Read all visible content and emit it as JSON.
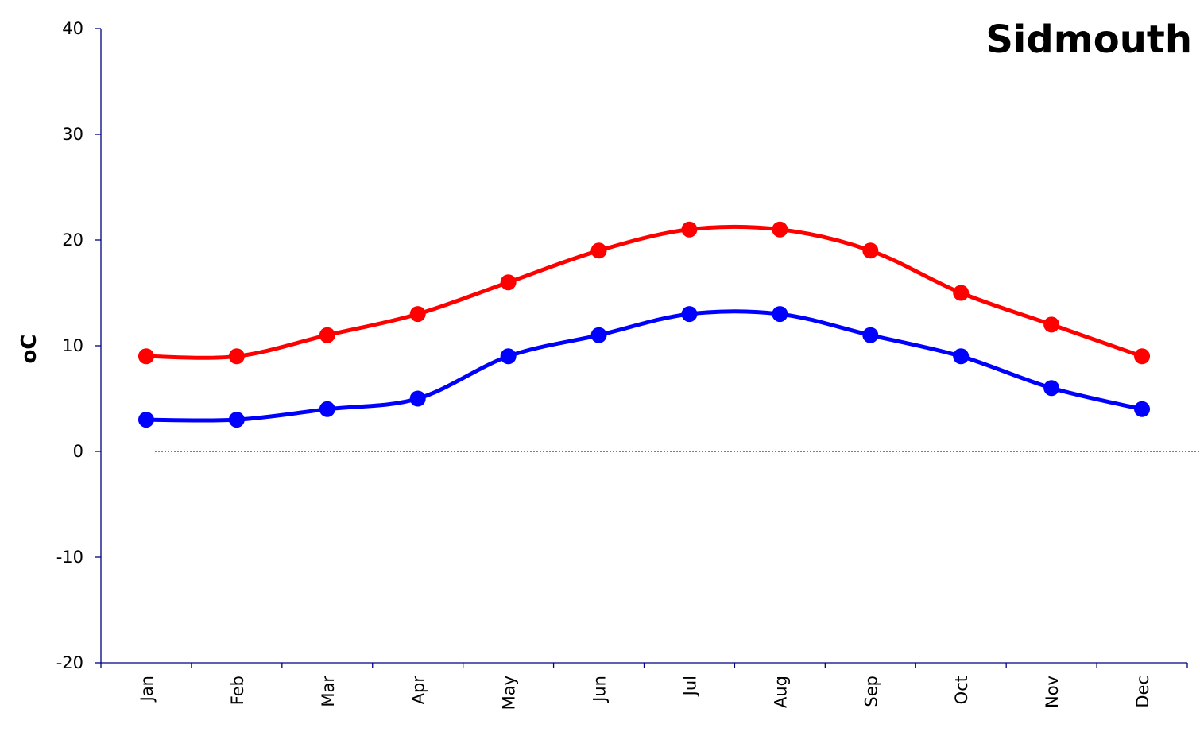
{
  "chart_data": {
    "type": "line",
    "title": "Sidmouth",
    "xlabel": "",
    "ylabel": "oC",
    "ylim": [
      -20,
      40
    ],
    "yticks": [
      40,
      30,
      20,
      10,
      0,
      -10,
      -20
    ],
    "categories": [
      "Jan",
      "Feb",
      "Mar",
      "Apr",
      "May",
      "Jun",
      "Jul",
      "Aug",
      "Sep",
      "Oct",
      "Nov",
      "Dec"
    ],
    "zero_line": "dotted",
    "grid": false,
    "legend": "none",
    "series": [
      {
        "key": "max",
        "color": "#ff0000",
        "values": [
          9,
          9,
          11,
          13,
          16,
          19,
          21,
          21,
          19,
          15,
          12,
          9
        ]
      },
      {
        "key": "min",
        "color": "#0000ff",
        "values": [
          3,
          3,
          4,
          5,
          9,
          11,
          13,
          13,
          11,
          9,
          6,
          4
        ]
      }
    ]
  }
}
